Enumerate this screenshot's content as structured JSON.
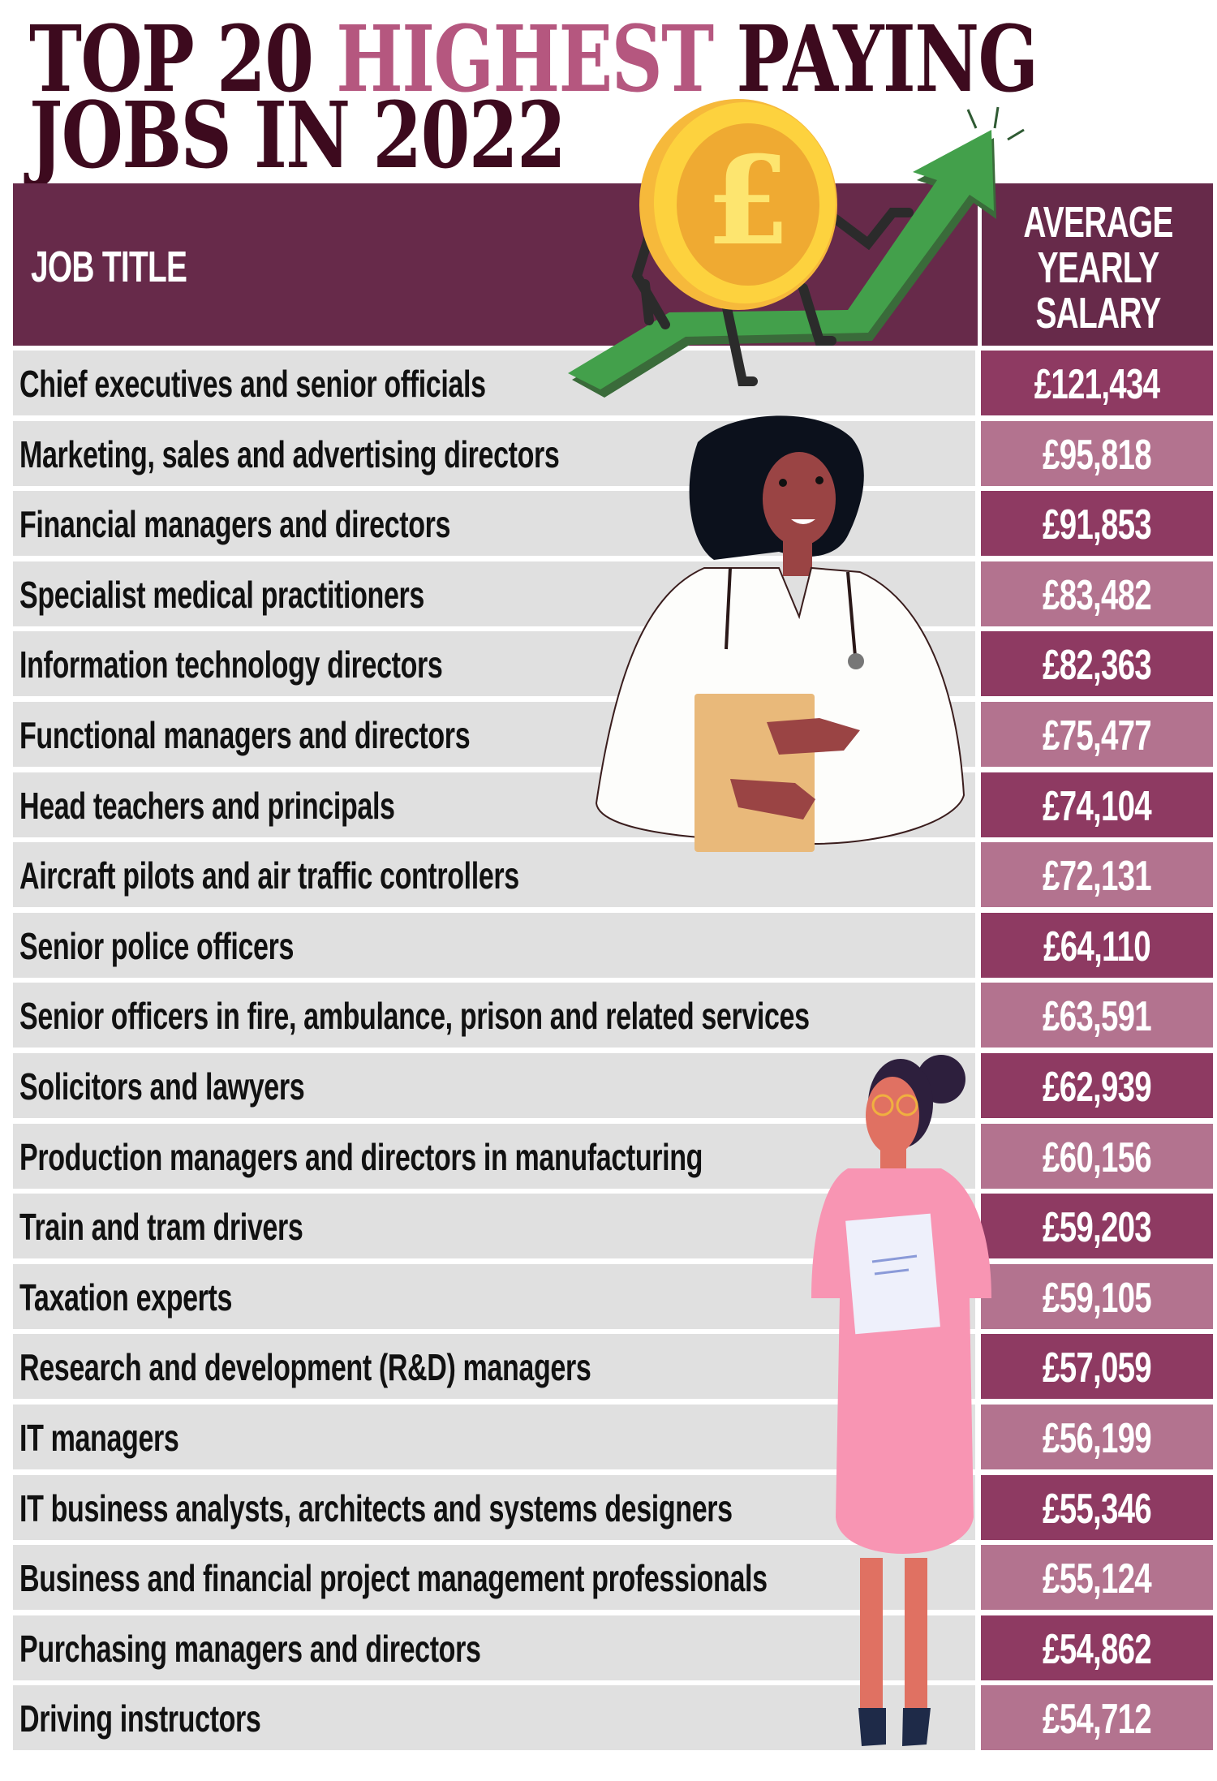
{
  "title": {
    "part1": "TOP 20 ",
    "highlight": "HIGHEST",
    "part2": " PAYING",
    "line2": "JOBS IN 2022"
  },
  "colors": {
    "title_dark": "#3d0a1e",
    "title_pink": "#b5577f",
    "header_bg": "#672a4a",
    "salary_dark": "#8e3a62",
    "salary_light": "#b3738f",
    "row_bg": "#e0e0e0"
  },
  "icons": [
    "pound-coin-icon",
    "rising-arrow-icon",
    "doctor-illustration",
    "businesswoman-illustration"
  ],
  "chart_data": {
    "type": "table",
    "title": "TOP 20 HIGHEST PAYING JOBS IN 2022",
    "columns": {
      "job": "JOB TITLE",
      "salary": [
        "AVERAGE",
        "YEARLY",
        "SALARY"
      ]
    },
    "rows": [
      {
        "job": "Chief executives and senior officials",
        "salary": "£121,434",
        "value": 121434
      },
      {
        "job": "Marketing, sales and advertising directors",
        "salary": "£95,818",
        "value": 95818
      },
      {
        "job": "Financial managers and directors",
        "salary": "£91,853",
        "value": 91853
      },
      {
        "job": "Specialist medical practitioners",
        "salary": "£83,482",
        "value": 83482
      },
      {
        "job": "Information technology directors",
        "salary": "£82,363",
        "value": 82363
      },
      {
        "job": "Functional managers and directors",
        "salary": "£75,477",
        "value": 75477
      },
      {
        "job": "Head teachers and principals",
        "salary": "£74,104",
        "value": 74104
      },
      {
        "job": "Aircraft pilots and air traffic controllers",
        "salary": "£72,131",
        "value": 72131
      },
      {
        "job": "Senior police officers",
        "salary": "£64,110",
        "value": 64110
      },
      {
        "job": "Senior officers in fire, ambulance, prison and related services",
        "salary": "£63,591",
        "value": 63591
      },
      {
        "job": "Solicitors and lawyers",
        "salary": "£62,939",
        "value": 62939
      },
      {
        "job": "Production managers and directors in manufacturing",
        "salary": "£60,156",
        "value": 60156
      },
      {
        "job": "Train and tram drivers",
        "salary": "£59,203",
        "value": 59203
      },
      {
        "job": "Taxation experts",
        "salary": "£59,105",
        "value": 59105
      },
      {
        "job": "Research and development (R&D) managers",
        "salary": "£57,059",
        "value": 57059
      },
      {
        "job": "IT managers",
        "salary": "£56,199",
        "value": 56199
      },
      {
        "job": "IT business analysts, architects and systems designers",
        "salary": "£55,346",
        "value": 55346
      },
      {
        "job": "Business and financial project management professionals",
        "salary": "£55,124",
        "value": 55124
      },
      {
        "job": "Purchasing managers and directors",
        "salary": "£54,862",
        "value": 54862
      },
      {
        "job": "Driving instructors",
        "salary": "£54,712",
        "value": 54712
      }
    ]
  }
}
